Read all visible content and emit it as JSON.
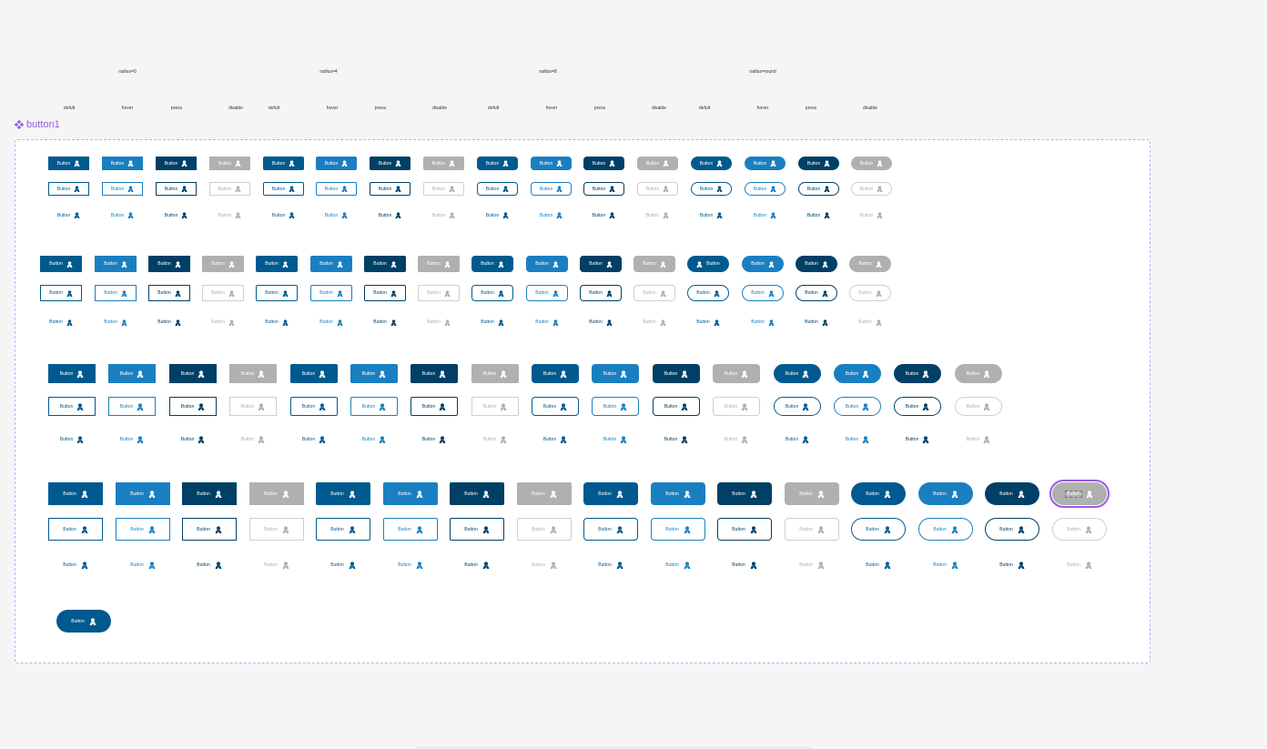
{
  "component_name": "button1",
  "group_labels": [
    "radius=0",
    "radius=4",
    "radius=8",
    "radius=round"
  ],
  "state_labels": [
    "defult",
    "hover",
    "press",
    "disable",
    "defult",
    "hover",
    "press",
    "disable",
    "defult",
    "hover",
    "press",
    "disable",
    "defult",
    "hover",
    "press",
    "disable"
  ],
  "button_label": "Button",
  "icon": "user-icon",
  "colors": {
    "default": "#005a8f",
    "hover": "#1a7fc1",
    "press": "#003f66",
    "disable": "#b0b0b0",
    "selection": "#9b59e8",
    "canvas": "#f5f5f5"
  }
}
